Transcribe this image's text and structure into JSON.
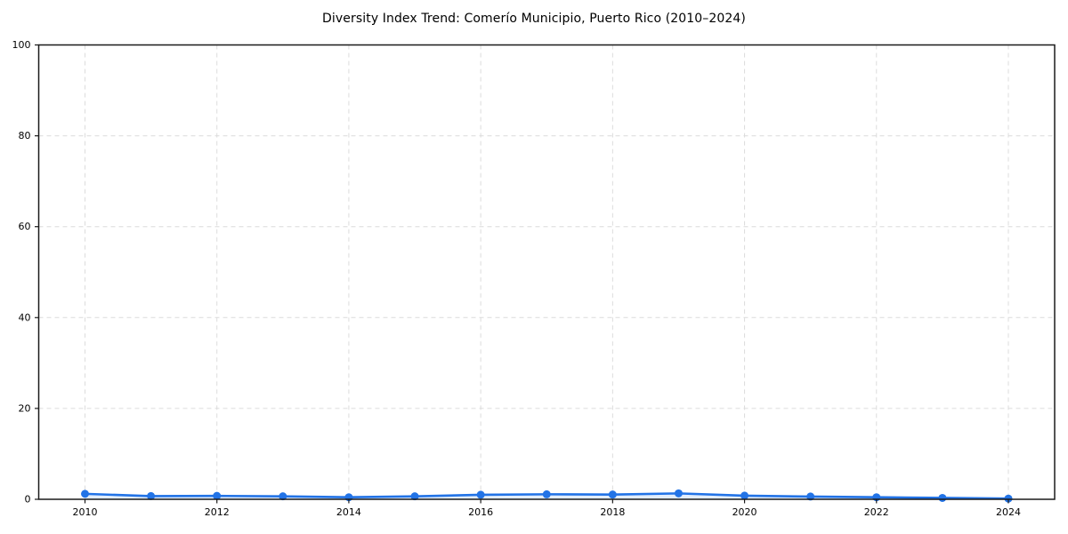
{
  "figure": {
    "background": "#ffffff"
  },
  "chart_data": {
    "type": "line",
    "title": "Diversity Index Trend: Comerío Municipio, Puerto Rico (2010–2024)",
    "xlabel": "",
    "ylabel": "",
    "x": [
      2010,
      2011,
      2012,
      2013,
      2014,
      2015,
      2016,
      2017,
      2018,
      2019,
      2020,
      2021,
      2022,
      2023,
      2024
    ],
    "series": [
      {
        "name": "Diversity Index",
        "values": [
          1.2,
          0.7,
          0.75,
          0.65,
          0.45,
          0.65,
          1.0,
          1.1,
          1.05,
          1.3,
          0.8,
          0.6,
          0.45,
          0.3,
          0.15
        ]
      }
    ],
    "xticks": [
      2010,
      2012,
      2014,
      2016,
      2018,
      2020,
      2022,
      2024
    ],
    "yticks": [
      0,
      20,
      40,
      60,
      80,
      100
    ],
    "ylim": [
      0,
      100
    ],
    "x_data_range": [
      2010,
      2024
    ],
    "grid": true,
    "grid_style": "dashed",
    "legend_position": "none",
    "colors": {
      "line": "#2273e6",
      "marker": "#2273e6",
      "fill_under_opacity": 0.13,
      "grid": "#dcdcdc",
      "spine": "#1a1a1a",
      "tick_text": "#000000",
      "background": "#ffffff"
    }
  }
}
